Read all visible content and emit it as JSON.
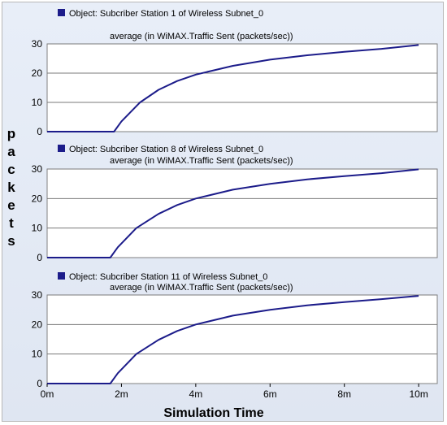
{
  "colors": {
    "line": "#1c1c8a",
    "legend_box": "#1c1c8a",
    "background": "#e4eaf5",
    "plot_bg": "#ffffff",
    "grid": "#7a7a7a"
  },
  "ylabel_vertical": "packets",
  "xlabel": "Simulation Time",
  "chart_data": [
    {
      "type": "line",
      "legend": "Object: Subcriber Station 1 of Wireless Subnet_0",
      "subtitle": "average (in WiMAX.Traffic Sent (packets/sec))",
      "ylim": [
        0,
        30
      ],
      "yticks": [
        "0",
        "10",
        "20",
        "30"
      ],
      "xlim": [
        0,
        10.5
      ],
      "grid": true,
      "series": [
        {
          "x": [
            0,
            1.8,
            2.0,
            2.5,
            3.0,
            3.5,
            4.0,
            5.0,
            6.0,
            7.0,
            8.0,
            9.0,
            10.0
          ],
          "y": [
            0,
            0,
            3.5,
            10.0,
            14.3,
            17.3,
            19.5,
            22.5,
            24.6,
            26.1,
            27.3,
            28.3,
            29.6
          ]
        }
      ]
    },
    {
      "type": "line",
      "legend": "Object: Subcriber Station 8 of Wireless Subnet_0",
      "subtitle": "average (in WiMAX.Traffic Sent (packets/sec))",
      "ylim": [
        0,
        30
      ],
      "yticks": [
        "0",
        "10",
        "20",
        "30"
      ],
      "xlim": [
        0,
        10.5
      ],
      "grid": true,
      "series": [
        {
          "x": [
            0,
            1.7,
            1.9,
            2.4,
            3.0,
            3.5,
            4.0,
            5.0,
            6.0,
            7.0,
            8.0,
            9.0,
            10.0
          ],
          "y": [
            0,
            0,
            3.5,
            10.0,
            14.8,
            17.8,
            20.0,
            23.0,
            25.0,
            26.5,
            27.6,
            28.6,
            29.9
          ]
        }
      ]
    },
    {
      "type": "line",
      "legend": "Object: Subcriber Station 11 of Wireless Subnet_0",
      "subtitle": "average (in WiMAX.Traffic Sent (packets/sec))",
      "ylim": [
        0,
        30
      ],
      "yticks": [
        "0",
        "10",
        "20",
        "30"
      ],
      "xlim": [
        0,
        10.5
      ],
      "xticks": [
        {
          "v": 0,
          "label": "0m"
        },
        {
          "v": 2,
          "label": "2m"
        },
        {
          "v": 4,
          "label": "4m"
        },
        {
          "v": 6,
          "label": "6m"
        },
        {
          "v": 8,
          "label": "8m"
        },
        {
          "v": 10,
          "label": "10m"
        }
      ],
      "grid": true,
      "series": [
        {
          "x": [
            0,
            1.7,
            1.9,
            2.4,
            3.0,
            3.5,
            4.0,
            5.0,
            6.0,
            7.0,
            8.0,
            9.0,
            10.0
          ],
          "y": [
            0,
            0,
            3.5,
            10.0,
            14.8,
            17.8,
            20.0,
            23.0,
            25.0,
            26.5,
            27.6,
            28.6,
            29.7
          ]
        }
      ]
    }
  ]
}
